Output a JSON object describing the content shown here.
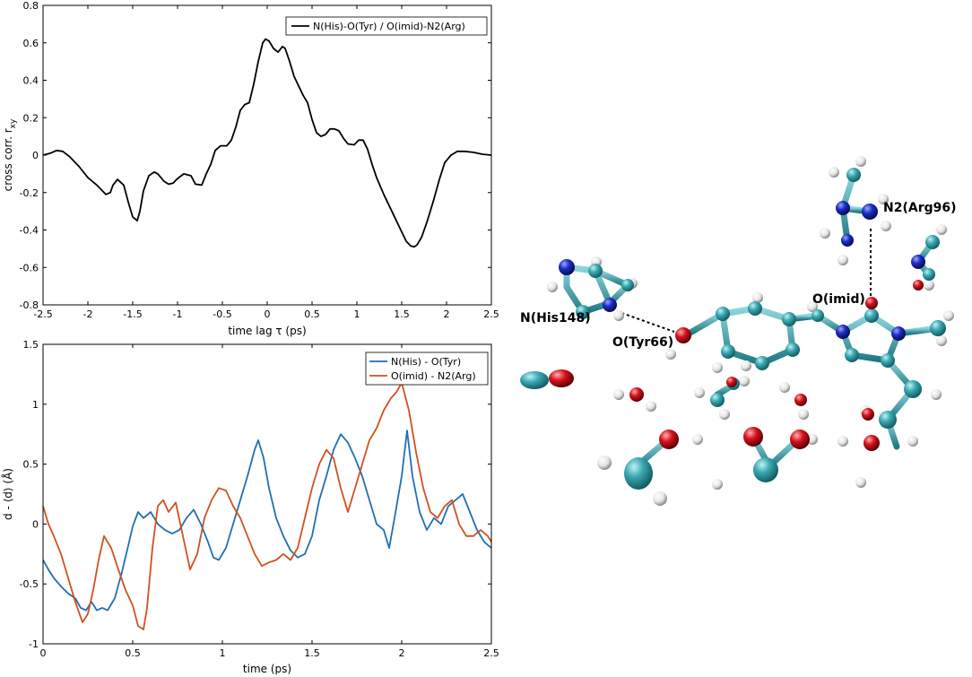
{
  "chart_data": [
    {
      "type": "line",
      "title": "",
      "xlabel": "time lag τ (ps)",
      "ylabel_main": "cross corr. r",
      "ylabel_sub": "xy",
      "xlim": [
        -2.5,
        2.5
      ],
      "ylim": [
        -0.8,
        0.8
      ],
      "xticks": [
        -2.5,
        -2,
        -1.5,
        -1,
        -0.5,
        0,
        0.5,
        1,
        1.5,
        2,
        2.5
      ],
      "xtick_labels": [
        "-2.5",
        "-2",
        "-1.5",
        "-1",
        "-0.5",
        "0",
        "0.5",
        "1",
        "1.5",
        "2",
        "2.5"
      ],
      "yticks": [
        -0.8,
        -0.6,
        -0.4,
        -0.2,
        0,
        0.2,
        0.4,
        0.6,
        0.8
      ],
      "ytick_labels": [
        "-0.8",
        "-0.6",
        "-0.4",
        "-0.2",
        "0",
        "0.2",
        "0.4",
        "0.6",
        "0.8"
      ],
      "legend_position": "top-right",
      "series": [
        {
          "name": "N(His)-O(Tyr) / O(imid)-N2(Arg)",
          "color": "#000000",
          "x": [
            -2.5,
            -2.42,
            -2.35,
            -2.28,
            -2.2,
            -2.1,
            -2.0,
            -1.9,
            -1.8,
            -1.75,
            -1.72,
            -1.67,
            -1.6,
            -1.55,
            -1.5,
            -1.45,
            -1.42,
            -1.38,
            -1.32,
            -1.26,
            -1.22,
            -1.15,
            -1.1,
            -1.05,
            -1.0,
            -0.93,
            -0.85,
            -0.8,
            -0.73,
            -0.68,
            -0.63,
            -0.58,
            -0.52,
            -0.45,
            -0.4,
            -0.35,
            -0.3,
            -0.25,
            -0.2,
            -0.15,
            -0.1,
            -0.05,
            -0.02,
            0.02,
            0.07,
            0.12,
            0.17,
            0.2,
            0.25,
            0.3,
            0.35,
            0.4,
            0.45,
            0.5,
            0.55,
            0.6,
            0.65,
            0.7,
            0.75,
            0.8,
            0.85,
            0.9,
            0.97,
            1.02,
            1.07,
            1.12,
            1.17,
            1.22,
            1.3,
            1.4,
            1.5,
            1.55,
            1.6,
            1.64,
            1.67,
            1.72,
            1.78,
            1.85,
            1.92,
            1.98,
            2.05,
            2.12,
            2.2,
            2.3,
            2.4,
            2.5
          ],
          "y": [
            0.0,
            0.01,
            0.025,
            0.02,
            -0.01,
            -0.06,
            -0.12,
            -0.16,
            -0.21,
            -0.2,
            -0.16,
            -0.13,
            -0.16,
            -0.25,
            -0.33,
            -0.35,
            -0.3,
            -0.19,
            -0.11,
            -0.09,
            -0.1,
            -0.14,
            -0.155,
            -0.15,
            -0.125,
            -0.1,
            -0.11,
            -0.155,
            -0.16,
            -0.1,
            -0.05,
            0.025,
            0.05,
            0.05,
            0.08,
            0.15,
            0.24,
            0.27,
            0.28,
            0.38,
            0.5,
            0.6,
            0.62,
            0.61,
            0.57,
            0.55,
            0.58,
            0.57,
            0.5,
            0.42,
            0.37,
            0.32,
            0.28,
            0.19,
            0.12,
            0.1,
            0.11,
            0.14,
            0.14,
            0.13,
            0.09,
            0.06,
            0.055,
            0.08,
            0.08,
            0.03,
            -0.05,
            -0.12,
            -0.21,
            -0.31,
            -0.41,
            -0.46,
            -0.485,
            -0.49,
            -0.48,
            -0.44,
            -0.36,
            -0.25,
            -0.13,
            -0.04,
            0.0,
            0.02,
            0.02,
            0.015,
            0.005,
            0.0
          ]
        }
      ]
    },
    {
      "type": "line",
      "title": "",
      "xlabel": "time (ps)",
      "ylabel": "d - ⟨d⟩ (Å)",
      "xlim": [
        0,
        2.5
      ],
      "ylim": [
        -1,
        1.5
      ],
      "xticks": [
        0,
        0.5,
        1,
        1.5,
        2,
        2.5
      ],
      "xtick_labels": [
        "0",
        "0.5",
        "1",
        "1.5",
        "2",
        "2.5"
      ],
      "yticks": [
        -1,
        -0.5,
        0,
        0.5,
        1,
        1.5
      ],
      "ytick_labels": [
        "-1",
        "-0.5",
        "0",
        "0.5",
        "1",
        "1.5"
      ],
      "legend_position": "top-right",
      "series": [
        {
          "name": "N(His) - O(Tyr)",
          "color": "#1f6fb5",
          "x": [
            0,
            0.03,
            0.06,
            0.1,
            0.14,
            0.18,
            0.21,
            0.24,
            0.27,
            0.3,
            0.33,
            0.36,
            0.4,
            0.44,
            0.48,
            0.5,
            0.53,
            0.56,
            0.6,
            0.64,
            0.68,
            0.72,
            0.76,
            0.8,
            0.84,
            0.88,
            0.92,
            0.95,
            0.98,
            1.02,
            1.06,
            1.1,
            1.14,
            1.18,
            1.2,
            1.23,
            1.26,
            1.3,
            1.34,
            1.38,
            1.42,
            1.46,
            1.5,
            1.54,
            1.58,
            1.62,
            1.66,
            1.7,
            1.74,
            1.78,
            1.82,
            1.86,
            1.9,
            1.93,
            1.96,
            2.0,
            2.03,
            2.06,
            2.1,
            2.14,
            2.18,
            2.22,
            2.26,
            2.3,
            2.34,
            2.38,
            2.42,
            2.46,
            2.5
          ],
          "y": [
            -0.3,
            -0.38,
            -0.45,
            -0.52,
            -0.58,
            -0.62,
            -0.7,
            -0.72,
            -0.65,
            -0.72,
            -0.7,
            -0.72,
            -0.62,
            -0.4,
            -0.15,
            -0.02,
            0.1,
            0.05,
            0.1,
            0.0,
            -0.05,
            -0.08,
            -0.05,
            0.05,
            0.12,
            0.0,
            -0.15,
            -0.28,
            -0.3,
            -0.2,
            0.0,
            0.2,
            0.4,
            0.62,
            0.7,
            0.55,
            0.3,
            0.05,
            -0.1,
            -0.22,
            -0.28,
            -0.25,
            -0.1,
            0.2,
            0.4,
            0.62,
            0.75,
            0.68,
            0.55,
            0.4,
            0.2,
            0.0,
            -0.05,
            -0.2,
            0.05,
            0.4,
            0.78,
            0.4,
            0.1,
            -0.05,
            0.05,
            0.0,
            0.15,
            0.2,
            0.25,
            0.1,
            -0.05,
            -0.15,
            -0.2
          ]
        },
        {
          "name": "O(imid) - N2(Arg)",
          "color": "#d2501f",
          "x": [
            0,
            0.03,
            0.06,
            0.1,
            0.14,
            0.18,
            0.22,
            0.25,
            0.28,
            0.31,
            0.34,
            0.38,
            0.42,
            0.46,
            0.5,
            0.53,
            0.56,
            0.58,
            0.61,
            0.64,
            0.67,
            0.7,
            0.74,
            0.78,
            0.82,
            0.86,
            0.9,
            0.94,
            0.98,
            1.02,
            1.06,
            1.1,
            1.14,
            1.18,
            1.22,
            1.26,
            1.3,
            1.34,
            1.38,
            1.42,
            1.46,
            1.5,
            1.54,
            1.58,
            1.62,
            1.66,
            1.7,
            1.74,
            1.78,
            1.82,
            1.86,
            1.9,
            1.94,
            1.97,
            2.0,
            2.04,
            2.08,
            2.12,
            2.16,
            2.2,
            2.24,
            2.28,
            2.32,
            2.36,
            2.4,
            2.44,
            2.48,
            2.5
          ],
          "y": [
            0.15,
            0.0,
            -0.1,
            -0.25,
            -0.45,
            -0.65,
            -0.82,
            -0.75,
            -0.55,
            -0.3,
            -0.1,
            -0.2,
            -0.38,
            -0.55,
            -0.68,
            -0.85,
            -0.88,
            -0.7,
            -0.2,
            0.15,
            0.2,
            0.1,
            0.18,
            -0.1,
            -0.38,
            -0.25,
            0.05,
            0.2,
            0.3,
            0.28,
            0.15,
            0.05,
            -0.1,
            -0.25,
            -0.35,
            -0.32,
            -0.3,
            -0.25,
            -0.3,
            -0.2,
            0.05,
            0.3,
            0.5,
            0.62,
            0.55,
            0.3,
            0.1,
            0.3,
            0.5,
            0.7,
            0.8,
            0.95,
            1.05,
            1.1,
            1.18,
            0.95,
            0.6,
            0.3,
            0.1,
            0.05,
            0.15,
            0.2,
            0.0,
            -0.1,
            -0.1,
            -0.05,
            -0.1,
            -0.15
          ]
        }
      ]
    }
  ],
  "molecule": {
    "labels": {
      "n2_arg": "N2(Arg96)",
      "o_imid": "O(imid)",
      "n_his": "N(His148)",
      "o_tyr": "O(Tyr66)"
    },
    "colors": {
      "carbon": "#3aa7b0",
      "nitrogen": "#1d2dc4",
      "oxygen": "#d8121b",
      "hydrogen": "#f0f0f0"
    }
  }
}
